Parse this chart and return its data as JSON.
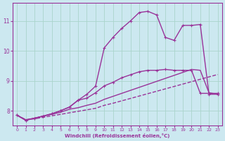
{
  "xlabel": "Windchill (Refroidissement éolien,°C)",
  "bg_color": "#cce8f0",
  "grid_color": "#aad4cc",
  "line_color": "#993399",
  "x_ticks": [
    0,
    1,
    2,
    3,
    4,
    5,
    6,
    7,
    8,
    9,
    10,
    11,
    12,
    13,
    14,
    15,
    16,
    17,
    18,
    19,
    20,
    21,
    22,
    23
  ],
  "y_ticks": [
    8,
    9,
    10,
    11
  ],
  "xlim": [
    -0.5,
    23.5
  ],
  "ylim": [
    7.5,
    11.6
  ],
  "series": [
    {
      "x": [
        0,
        1,
        2,
        3,
        4,
        5,
        6,
        7,
        8,
        9,
        10,
        11,
        12,
        13,
        14,
        15,
        16,
        17,
        18,
        19,
        20,
        21,
        22,
        23
      ],
      "y": [
        7.85,
        7.7,
        7.73,
        7.78,
        7.83,
        7.88,
        7.93,
        7.98,
        8.03,
        8.08,
        8.18,
        8.25,
        8.33,
        8.41,
        8.49,
        8.57,
        8.65,
        8.73,
        8.81,
        8.89,
        8.97,
        9.05,
        9.13,
        9.21
      ],
      "marker": null,
      "linestyle": "--",
      "linewidth": 1.0
    },
    {
      "x": [
        0,
        1,
        2,
        3,
        4,
        5,
        6,
        7,
        8,
        9,
        10,
        11,
        12,
        13,
        14,
        15,
        16,
        17,
        18,
        19,
        20,
        21,
        22,
        23
      ],
      "y": [
        7.85,
        7.7,
        7.75,
        7.82,
        7.88,
        7.95,
        8.05,
        8.1,
        8.18,
        8.25,
        8.38,
        8.48,
        8.58,
        8.68,
        8.78,
        8.88,
        8.98,
        9.08,
        9.18,
        9.28,
        9.38,
        9.35,
        8.6,
        8.55
      ],
      "marker": null,
      "linestyle": "-",
      "linewidth": 1.0
    },
    {
      "x": [
        0,
        1,
        2,
        3,
        4,
        5,
        6,
        7,
        8,
        9,
        10,
        11,
        12,
        13,
        14,
        15,
        16,
        17,
        18,
        19,
        20,
        21,
        22,
        23
      ],
      "y": [
        7.85,
        7.68,
        7.75,
        7.82,
        7.9,
        8.0,
        8.12,
        8.35,
        8.42,
        8.6,
        8.83,
        8.95,
        9.1,
        9.2,
        9.3,
        9.35,
        9.35,
        9.38,
        9.35,
        9.35,
        9.35,
        8.58,
        8.58,
        8.58
      ],
      "marker": "+",
      "linestyle": "-",
      "linewidth": 1.0
    },
    {
      "x": [
        0,
        1,
        2,
        3,
        4,
        5,
        6,
        7,
        8,
        9,
        10,
        11,
        12,
        13,
        14,
        15,
        16,
        17,
        18,
        19,
        20,
        21,
        22,
        23
      ],
      "y": [
        7.85,
        7.68,
        7.75,
        7.82,
        7.9,
        8.0,
        8.12,
        8.35,
        8.55,
        8.82,
        10.1,
        10.45,
        10.75,
        11.0,
        11.28,
        11.32,
        11.2,
        10.45,
        10.35,
        10.85,
        10.85,
        10.88,
        8.55,
        8.55
      ],
      "marker": "+",
      "linestyle": "-",
      "linewidth": 1.0
    }
  ]
}
